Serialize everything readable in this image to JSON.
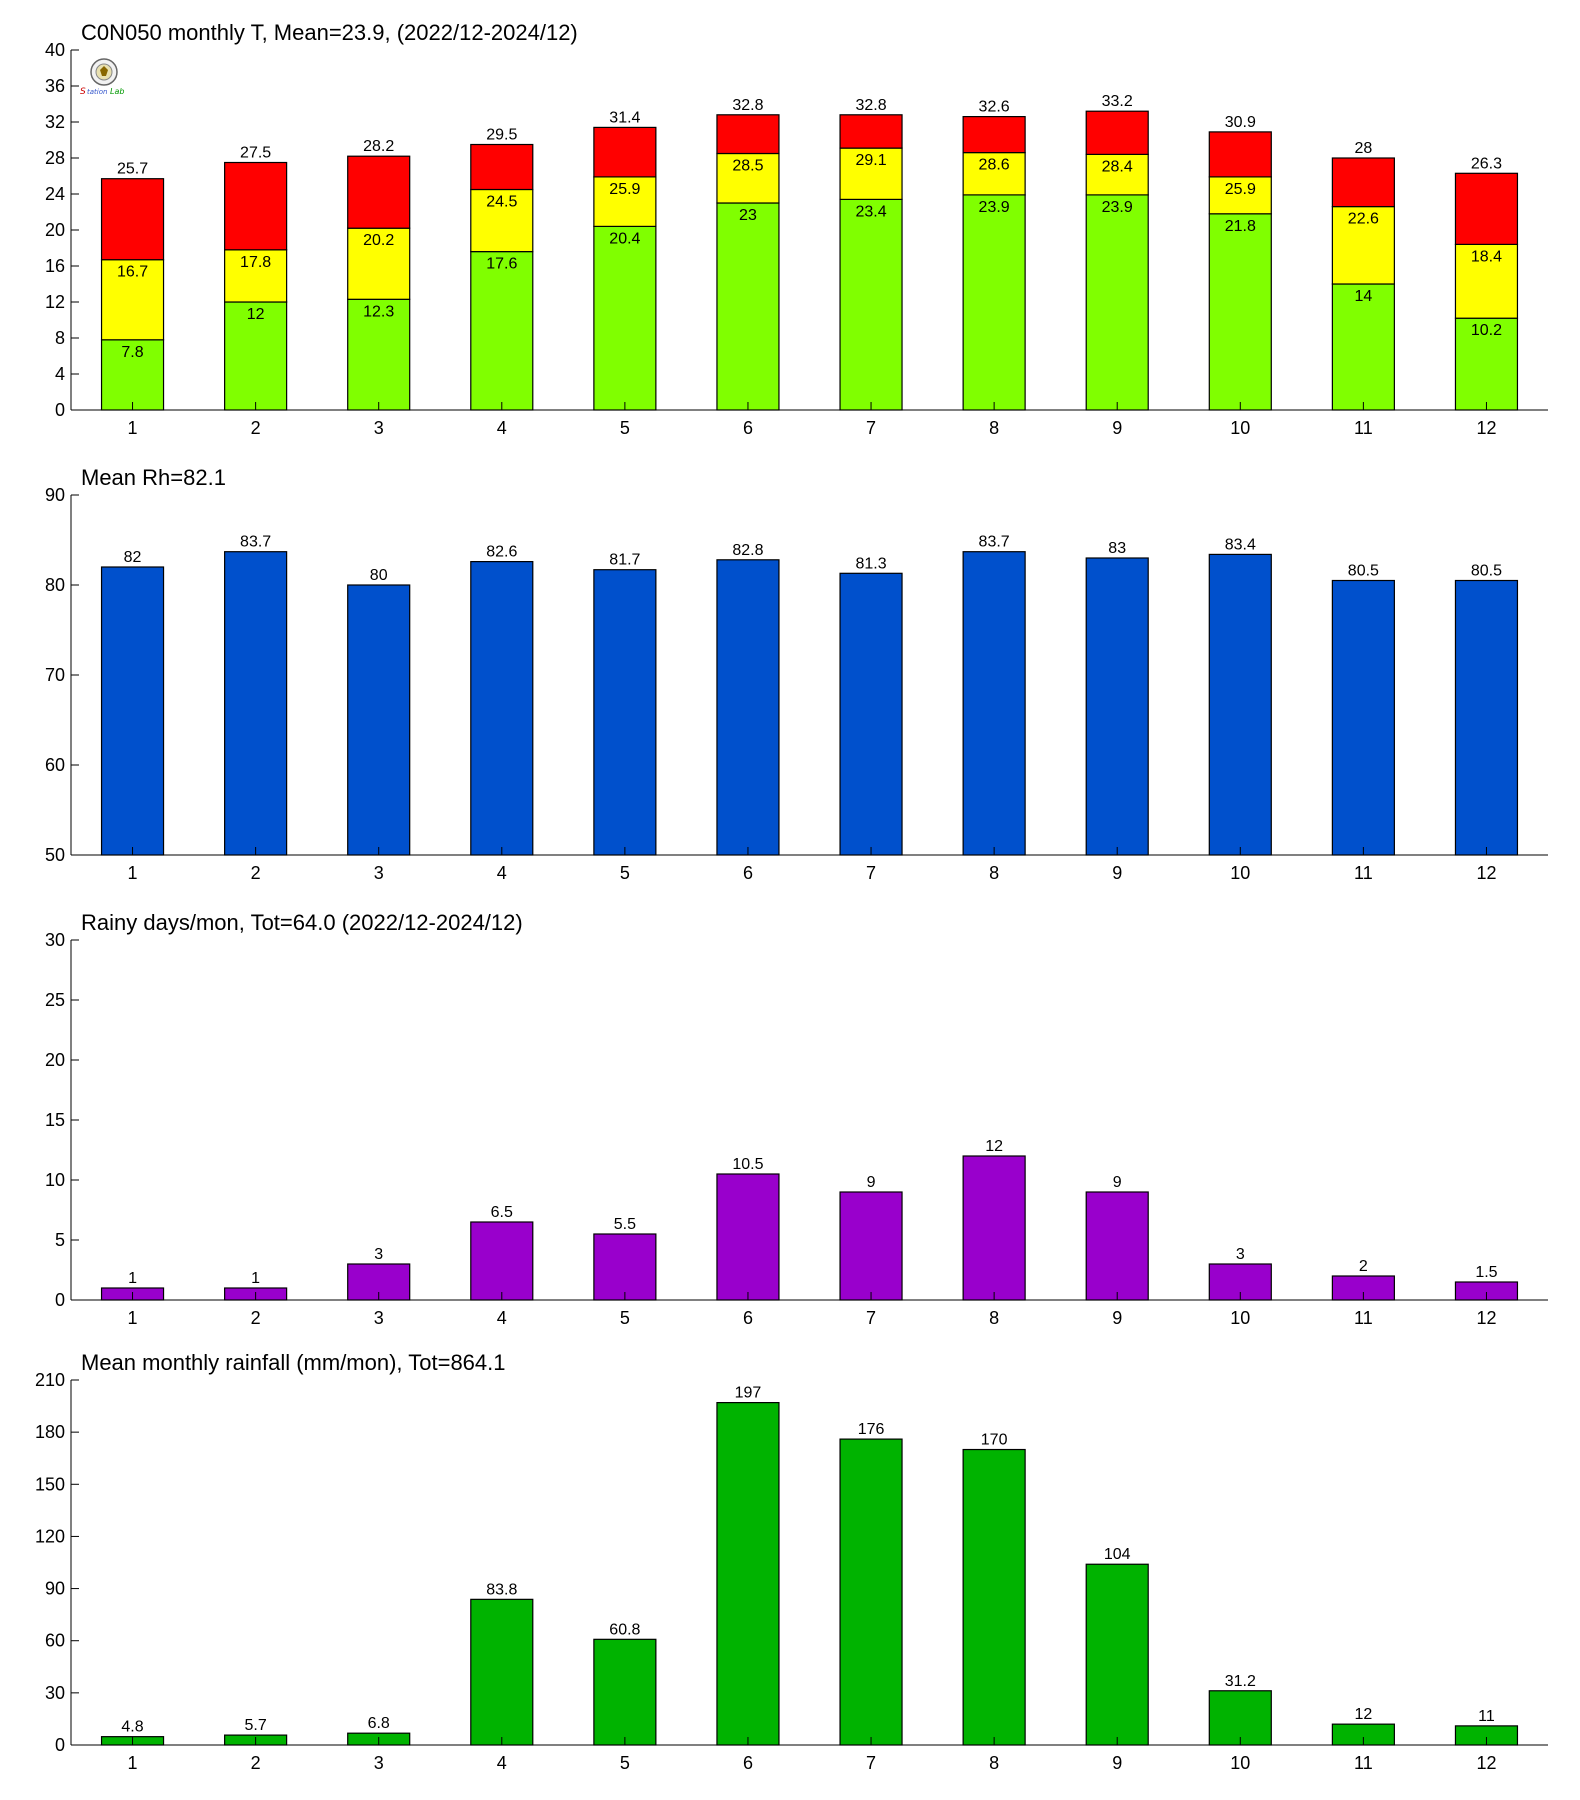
{
  "chart_data": [
    {
      "type": "bar",
      "stacked": true,
      "title": "C0N050 monthly T, Mean=23.9, (2022/12-2024/12)",
      "categories": [
        "1",
        "2",
        "3",
        "4",
        "5",
        "6",
        "7",
        "8",
        "9",
        "10",
        "11",
        "12"
      ],
      "ylim": [
        0,
        40
      ],
      "yticks": [
        0,
        4,
        8,
        12,
        16,
        20,
        24,
        28,
        32,
        36,
        40
      ],
      "min": [
        7.8,
        12,
        12.3,
        17.6,
        20.4,
        23,
        23.4,
        23.9,
        23.9,
        21.8,
        14,
        10.2
      ],
      "mean": [
        16.7,
        17.8,
        20.2,
        24.5,
        25.9,
        28.5,
        29.1,
        28.6,
        28.4,
        25.9,
        22.6,
        18.4
      ],
      "max": [
        25.7,
        27.5,
        28.2,
        29.5,
        31.4,
        32.8,
        32.8,
        32.6,
        33.2,
        30.9,
        28,
        26.3
      ],
      "colors": {
        "min": "#80ff00",
        "mean": "#ffff00",
        "max": "#ff0000"
      },
      "min_labels": [
        "7.8",
        "12",
        "12.3",
        "17.6",
        "20.4",
        "23",
        "23.4",
        "23.9",
        "23.9",
        "21.8",
        "14",
        "10.2"
      ],
      "mean_labels": [
        "16.7",
        "17.8",
        "20.2",
        "24.5",
        "25.9",
        "28.5",
        "29.1",
        "28.6",
        "28.4",
        "25.9",
        "22.6",
        "18.4"
      ],
      "max_labels": [
        "25.7",
        "27.5",
        "28.2",
        "29.5",
        "31.4",
        "32.8",
        "32.8",
        "32.6",
        "33.2",
        "30.9",
        "28",
        "26.3"
      ],
      "ytick_labels": [
        "0",
        "4",
        "8",
        "12",
        "16",
        "20",
        "24",
        "28",
        "32",
        "36",
        "40"
      ]
    },
    {
      "type": "bar",
      "title": "Mean Rh=82.1",
      "categories": [
        "1",
        "2",
        "3",
        "4",
        "5",
        "6",
        "7",
        "8",
        "9",
        "10",
        "11",
        "12"
      ],
      "ylim": [
        50,
        90
      ],
      "yticks": [
        50,
        60,
        70,
        80,
        90
      ],
      "values": [
        82,
        83.7,
        80,
        82.6,
        81.7,
        82.8,
        81.3,
        83.7,
        83,
        83.4,
        80.5,
        80.5
      ],
      "value_labels": [
        "82",
        "83.7",
        "80",
        "82.6",
        "81.7",
        "82.8",
        "81.3",
        "83.7",
        "83",
        "83.4",
        "80.5",
        "80.5"
      ],
      "ytick_labels": [
        "50",
        "60",
        "70",
        "80",
        "90"
      ],
      "color": "#0050cc"
    },
    {
      "type": "bar",
      "title": "Rainy days/mon, Tot=64.0 (2022/12-2024/12)",
      "categories": [
        "1",
        "2",
        "3",
        "4",
        "5",
        "6",
        "7",
        "8",
        "9",
        "10",
        "11",
        "12"
      ],
      "ylim": [
        0,
        30
      ],
      "yticks": [
        0,
        5,
        10,
        15,
        20,
        25,
        30
      ],
      "values": [
        1,
        1,
        3,
        6.5,
        5.5,
        10.5,
        9,
        12,
        9,
        3,
        2,
        1.5
      ],
      "value_labels": [
        "1",
        "1",
        "3",
        "6.5",
        "5.5",
        "10.5",
        "9",
        "12",
        "9",
        "3",
        "2",
        "1.5"
      ],
      "ytick_labels": [
        "0",
        "5",
        "10",
        "15",
        "20",
        "25",
        "30"
      ],
      "color": "#9900cc"
    },
    {
      "type": "bar",
      "title": "Mean monthly rainfall (mm/mon), Tot=864.1",
      "categories": [
        "1",
        "2",
        "3",
        "4",
        "5",
        "6",
        "7",
        "8",
        "9",
        "10",
        "11",
        "12"
      ],
      "ylim": [
        0,
        210
      ],
      "yticks": [
        0,
        30,
        60,
        90,
        120,
        150,
        180,
        210
      ],
      "values": [
        4.8,
        5.7,
        6.8,
        83.8,
        60.8,
        197,
        176,
        170,
        104,
        31.2,
        12,
        11
      ],
      "value_labels": [
        "4.8",
        "5.7",
        "6.8",
        "83.8",
        "60.8",
        "197",
        "176",
        "170",
        "104",
        "31.2",
        "12",
        "11"
      ],
      "ytick_labels": [
        "0",
        "30",
        "60",
        "90",
        "120",
        "150",
        "180",
        "210"
      ],
      "color": "#00b300"
    }
  ]
}
